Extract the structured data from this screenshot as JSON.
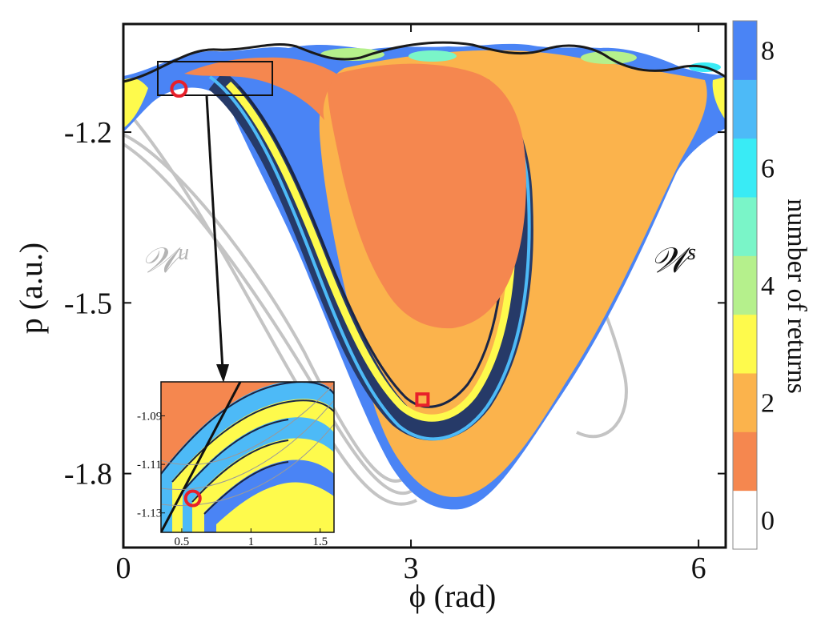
{
  "chart_data": {
    "type": "heatmap",
    "title": "",
    "xlabel": "ϕ (rad)",
    "ylabel": "p (a.u.)",
    "xlim": [
      0,
      6.283
    ],
    "ylim": [
      -1.93,
      -1.01
    ],
    "x_ticks": [
      {
        "value": 0,
        "label": "0"
      },
      {
        "value": 3,
        "label": "3"
      },
      {
        "value": 6,
        "label": "6"
      }
    ],
    "y_ticks": [
      {
        "value": -1.2,
        "label": "-1.2"
      },
      {
        "value": -1.5,
        "label": "-1.5"
      },
      {
        "value": -1.8,
        "label": "-1.8"
      }
    ],
    "colorbar": {
      "label": "number of returns",
      "range": [
        0,
        8
      ],
      "tick_labels": [
        "8",
        "6",
        "4",
        "2",
        "0"
      ],
      "colors": [
        {
          "value": 0,
          "color": "#ffffff"
        },
        {
          "value": 1,
          "color": "#f5874f"
        },
        {
          "value": 2,
          "color": "#fbb34c"
        },
        {
          "value": 3,
          "color": "#fefa4c"
        },
        {
          "value": 4,
          "color": "#b5f08c"
        },
        {
          "value": 5,
          "color": "#7af5c8"
        },
        {
          "value": 6,
          "color": "#39ebf5"
        },
        {
          "value": 7,
          "color": "#4dbaf7"
        },
        {
          "value": 8,
          "color": "#4a84f5"
        }
      ]
    },
    "annotations": [
      {
        "text": "𝒲",
        "superscript": "u",
        "color": "#b4b4b4",
        "meaning": "unstable manifold"
      },
      {
        "text": "𝒲",
        "superscript": "s",
        "color": "#111111",
        "meaning": "stable manifold"
      }
    ],
    "markers": [
      {
        "shape": "circle",
        "color": "#e8202a",
        "x": 0.58,
        "y": -1.124
      },
      {
        "shape": "square",
        "color": "#e8202a",
        "x": 3.12,
        "y": -1.67
      }
    ],
    "inset": {
      "xlim": [
        0.35,
        1.6
      ],
      "ylim": [
        -1.138,
        -1.076
      ],
      "x_ticks": [
        {
          "value": 0.5,
          "label": "0.5"
        },
        {
          "value": 1.0,
          "label": "1"
        },
        {
          "value": 1.5,
          "label": "1.5"
        }
      ],
      "y_ticks": [
        {
          "value": -1.09,
          "label": "-1.09"
        },
        {
          "value": -1.11,
          "label": "-1.11"
        },
        {
          "value": -1.13,
          "label": "-1.13"
        }
      ],
      "zoom_region": {
        "x": [
          0.35,
          1.6
        ],
        "y": [
          -1.138,
          -1.076
        ]
      }
    }
  }
}
